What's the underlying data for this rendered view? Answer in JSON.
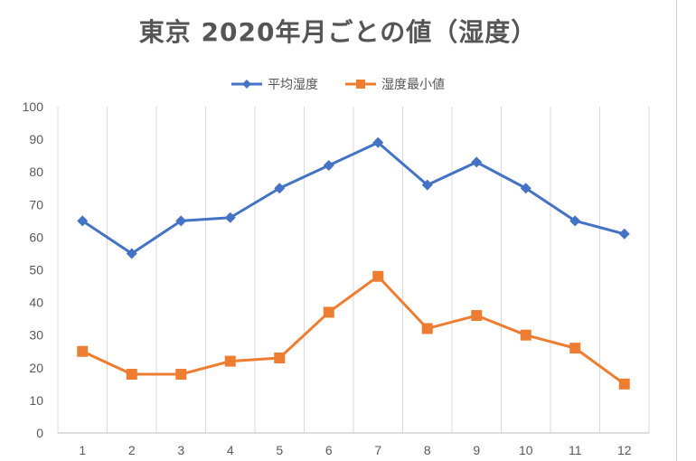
{
  "chart_data": {
    "type": "line",
    "title": "東京 2020年月ごとの値（湿度）",
    "xlabel": "",
    "ylabel": "",
    "categories": [
      "1",
      "2",
      "3",
      "4",
      "5",
      "6",
      "7",
      "8",
      "9",
      "10",
      "11",
      "12"
    ],
    "ylim": [
      0,
      100
    ],
    "yticks": [
      0,
      10,
      20,
      30,
      40,
      50,
      60,
      70,
      80,
      90,
      100
    ],
    "grid": "vertical",
    "legend_position": "top",
    "series": [
      {
        "name": "平均湿度",
        "color": "#4472C4",
        "marker": "diamond",
        "values": [
          65,
          55,
          65,
          66,
          75,
          82,
          89,
          76,
          83,
          75,
          65,
          61
        ]
      },
      {
        "name": "湿度最小値",
        "color": "#ED7D31",
        "marker": "square",
        "values": [
          25,
          18,
          18,
          22,
          23,
          37,
          48,
          32,
          36,
          30,
          26,
          15
        ]
      }
    ]
  }
}
